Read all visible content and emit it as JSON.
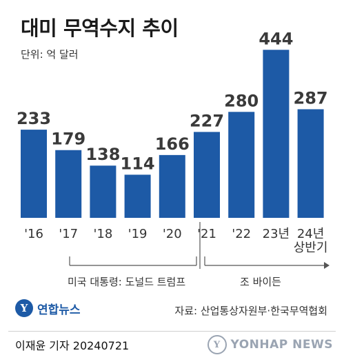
{
  "title": "대미 무역수지 추이",
  "unit": "단위: 억 달러",
  "chart_data": {
    "type": "bar",
    "title": "대미 무역수지 추이",
    "categories": [
      "'16",
      "'17",
      "'18",
      "'19",
      "'20",
      "'21",
      "'22",
      "23년",
      "24년\n상반기"
    ],
    "values": [
      233,
      179,
      138,
      114,
      166,
      227,
      280,
      444,
      287
    ],
    "ylim": [
      0,
      470
    ],
    "grid": false,
    "bar_color": "#1d5aa6",
    "data_labels": [
      "233",
      "179",
      "138",
      "114",
      "166",
      "227",
      "280",
      "444",
      "287"
    ]
  },
  "eras": [
    {
      "label": "미국 대통령: 도널드 트럼프"
    },
    {
      "label": "조 바이든"
    }
  ],
  "source": "자료: 산업통상자원부·한국무역협회",
  "logo": {
    "mark": "Y",
    "text": "연합뉴스"
  },
  "byline": "이재윤 기자  20240721",
  "watermark": {
    "mark": "Y",
    "text": "YONHAP NEWS"
  }
}
